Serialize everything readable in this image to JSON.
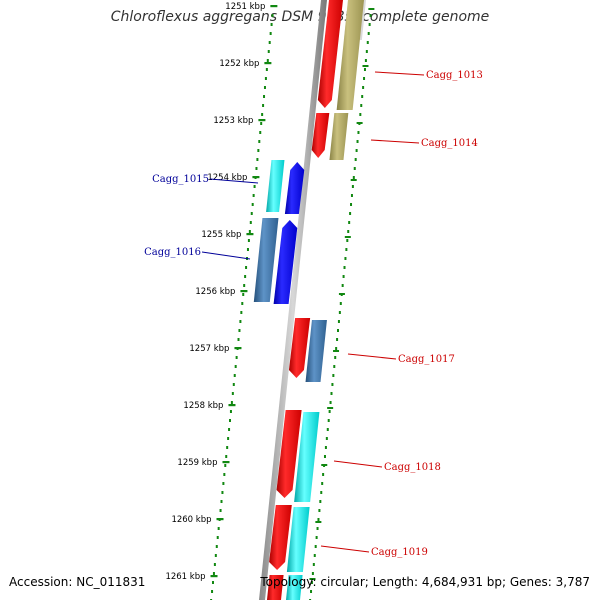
{
  "title": "Chloroflexus aggregans DSM 9485, complete genome",
  "footer": {
    "accession": "Accession: NC_011831",
    "topology": "Topology: circular; Length: 4,684,931 bp; Genes: 3,787"
  },
  "ticks": [
    {
      "kbp": 1251,
      "label": "1251 kbp"
    },
    {
      "kbp": 1252,
      "label": "1252 kbp"
    },
    {
      "kbp": 1253,
      "label": "1253 kbp"
    },
    {
      "kbp": 1254,
      "label": "1254 kbp"
    },
    {
      "kbp": 1255,
      "label": "1255 kbp"
    },
    {
      "kbp": 1256,
      "label": "1256 kbp"
    },
    {
      "kbp": 1257,
      "label": "1257 kbp"
    },
    {
      "kbp": 1258,
      "label": "1258 kbp"
    },
    {
      "kbp": 1259,
      "label": "1259 kbp"
    },
    {
      "kbp": 1260,
      "label": "1260 kbp"
    },
    {
      "kbp": 1261,
      "label": "1261 kbp"
    }
  ],
  "colors": {
    "forward_label": "#cc0000",
    "reverse_label": "#000099",
    "cds_forward": "#ee0000",
    "cds_reverse": "#0000ee",
    "olive": "#b8b06a",
    "steel_blue": "#3d74a8",
    "cyan": "#00e5e5",
    "tick_green": "#118811"
  },
  "genes": [
    {
      "label": "Cagg_1013",
      "strand": "forward"
    },
    {
      "label": "Cagg_1014",
      "strand": "forward"
    },
    {
      "label": "Cagg_1015",
      "strand": "reverse"
    },
    {
      "label": "Cagg_1016",
      "strand": "reverse"
    },
    {
      "label": "Cagg_1017",
      "strand": "forward"
    },
    {
      "label": "Cagg_1018",
      "strand": "forward"
    },
    {
      "label": "Cagg_1019",
      "strand": "forward"
    }
  ]
}
